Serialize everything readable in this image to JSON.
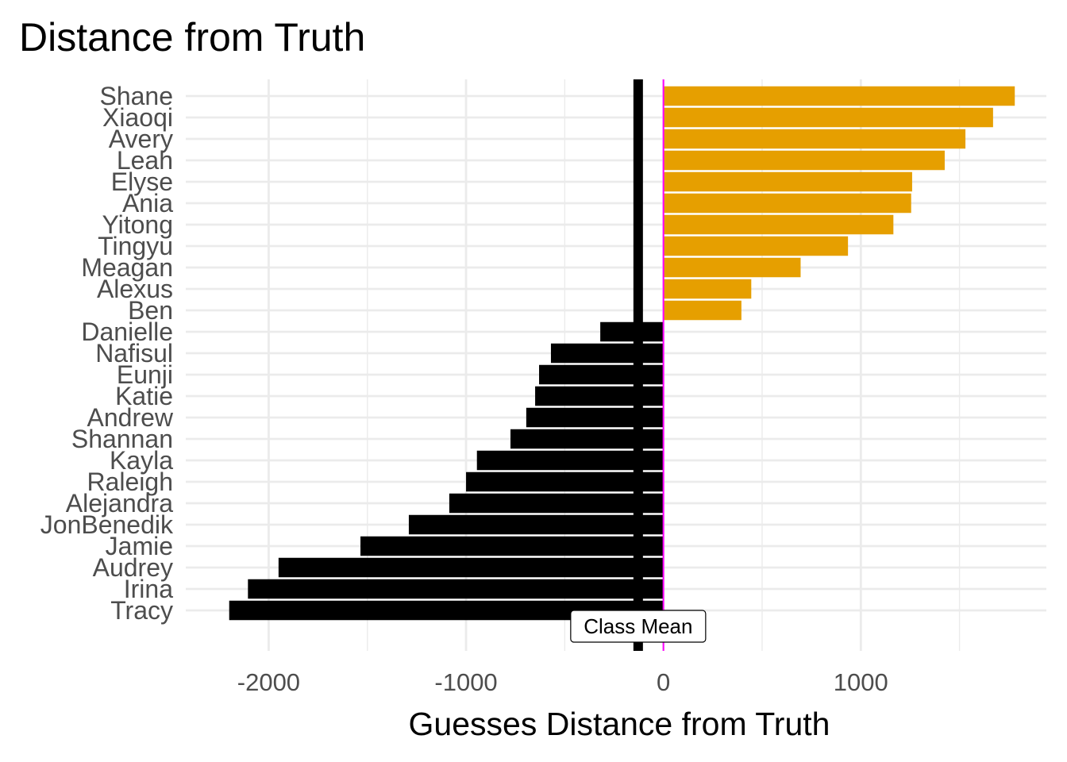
{
  "chart_data": {
    "type": "bar",
    "orientation": "horizontal",
    "title": "Distance from Truth",
    "xlabel": "Guesses Distance from Truth",
    "ylabel": "",
    "xlim": [
      -2420,
      1940
    ],
    "x_ticks": [
      -2000,
      -1000,
      0,
      1000
    ],
    "x_tick_labels": [
      "-2000",
      "-1000",
      "0",
      "1000"
    ],
    "grid": true,
    "legend": "none",
    "colors": {
      "positive": "#E69F00",
      "negative": "#000000",
      "zero_line": "#FF00FF",
      "mean_line": "#000000",
      "grid": "#EBEBEB"
    },
    "categories": [
      "Shane",
      "Xiaoqi",
      "Avery",
      "Leah",
      "Elyse",
      "Ania",
      "Yitong",
      "Tingyu",
      "Meagan",
      "Alexus",
      "Ben",
      "Danielle",
      "Nafisul",
      "Eunji",
      "Katie",
      "Andrew",
      "Shannan",
      "Kayla",
      "Raleigh",
      "Alejandra",
      "JonBenedik",
      "Jamie",
      "Audrey",
      "Irina",
      "Tracy"
    ],
    "values": [
      1780,
      1670,
      1530,
      1425,
      1260,
      1255,
      1165,
      935,
      695,
      445,
      395,
      -320,
      -570,
      -630,
      -650,
      -695,
      -775,
      -945,
      -1000,
      -1085,
      -1290,
      -1535,
      -1950,
      -2105,
      -2200
    ],
    "reference_lines": [
      {
        "x": 0,
        "color": "#FF00FF"
      },
      {
        "x": -128,
        "color": "#000000",
        "label": "Class Mean"
      }
    ]
  }
}
